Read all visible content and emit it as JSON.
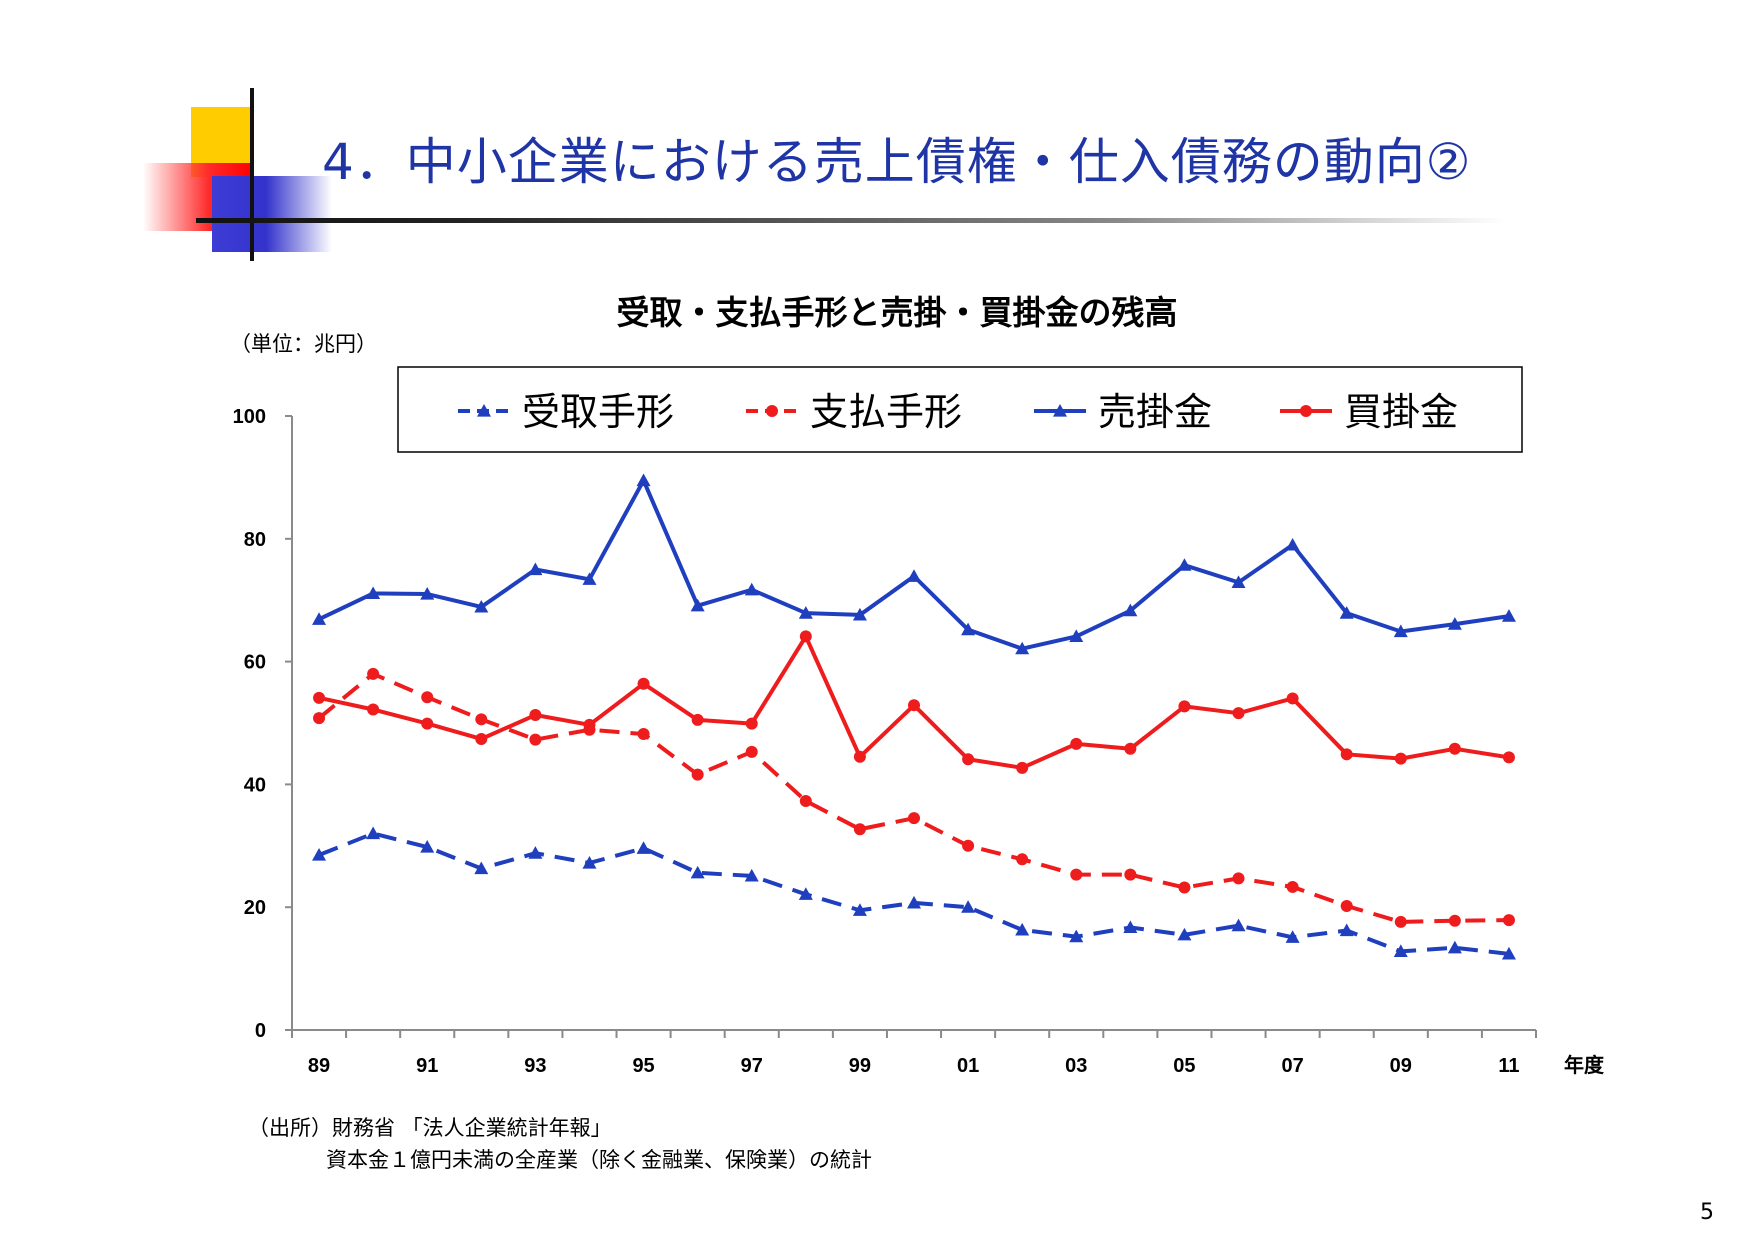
{
  "slide": {
    "title": "4．中小企業における売上債権・仕入債務の動向②",
    "unit_note": "（単位：兆円）",
    "source_line1": "（出所）財務省 「法人企業統計年報」",
    "source_line2": "資本金１億円未満の全産業（除く金融業、保険業）の統計",
    "page_number": "5"
  },
  "colors": {
    "blue": "#1f3fbf",
    "red": "#ee1c1c",
    "title_blue": "#1f35a5"
  },
  "chart_data": {
    "type": "line",
    "title": "受取・支払手形と売掛・買掛金の残高",
    "xlabel": "年度",
    "ylabel": "",
    "ylim": [
      0,
      100
    ],
    "yticks": [
      0,
      20,
      40,
      60,
      80,
      100
    ],
    "x": [
      "89",
      "90",
      "91",
      "92",
      "93",
      "94",
      "95",
      "96",
      "97",
      "98",
      "99",
      "00",
      "01",
      "02",
      "03",
      "04",
      "05",
      "06",
      "07",
      "08",
      "09",
      "10",
      "11"
    ],
    "xtick_labels": [
      "89",
      "91",
      "93",
      "95",
      "97",
      "99",
      "01",
      "03",
      "05",
      "07",
      "09",
      "11"
    ],
    "legend_position": "top",
    "grid": false,
    "series": [
      {
        "name": "受取手形",
        "color": "#1f3fbf",
        "style": "dashed",
        "marker": "triangle",
        "values": [
          28.5,
          32.0,
          29.8,
          26.3,
          28.8,
          27.2,
          29.6,
          25.6,
          25.1,
          22.1,
          19.5,
          20.7,
          20.0,
          16.3,
          15.2,
          16.7,
          15.5,
          17.0,
          15.1,
          16.2,
          12.8,
          13.4,
          12.4
        ]
      },
      {
        "name": "支払手形",
        "color": "#ee1c1c",
        "style": "dashed",
        "marker": "circle",
        "values": [
          50.8,
          58.0,
          54.2,
          50.6,
          47.3,
          48.9,
          48.2,
          41.6,
          45.3,
          37.3,
          32.7,
          34.5,
          30.0,
          27.8,
          25.3,
          25.3,
          23.2,
          24.7,
          23.3,
          20.2,
          17.6,
          17.8,
          17.9
        ]
      },
      {
        "name": "売掛金",
        "color": "#1f3fbf",
        "style": "solid",
        "marker": "triangle",
        "values": [
          66.9,
          71.1,
          71.0,
          68.9,
          75.0,
          73.4,
          89.5,
          69.1,
          71.7,
          67.9,
          67.6,
          73.9,
          65.2,
          62.1,
          64.1,
          68.3,
          75.7,
          72.9,
          79.0,
          67.9,
          64.9,
          66.1,
          67.4
        ]
      },
      {
        "name": "買掛金",
        "color": "#ee1c1c",
        "style": "solid",
        "marker": "circle",
        "values": [
          54.1,
          52.2,
          49.9,
          47.4,
          51.3,
          49.7,
          56.4,
          50.5,
          49.9,
          64.1,
          44.5,
          52.9,
          44.1,
          42.7,
          46.6,
          45.8,
          52.7,
          51.6,
          54.0,
          44.9,
          44.2,
          45.8,
          44.4
        ]
      }
    ]
  }
}
